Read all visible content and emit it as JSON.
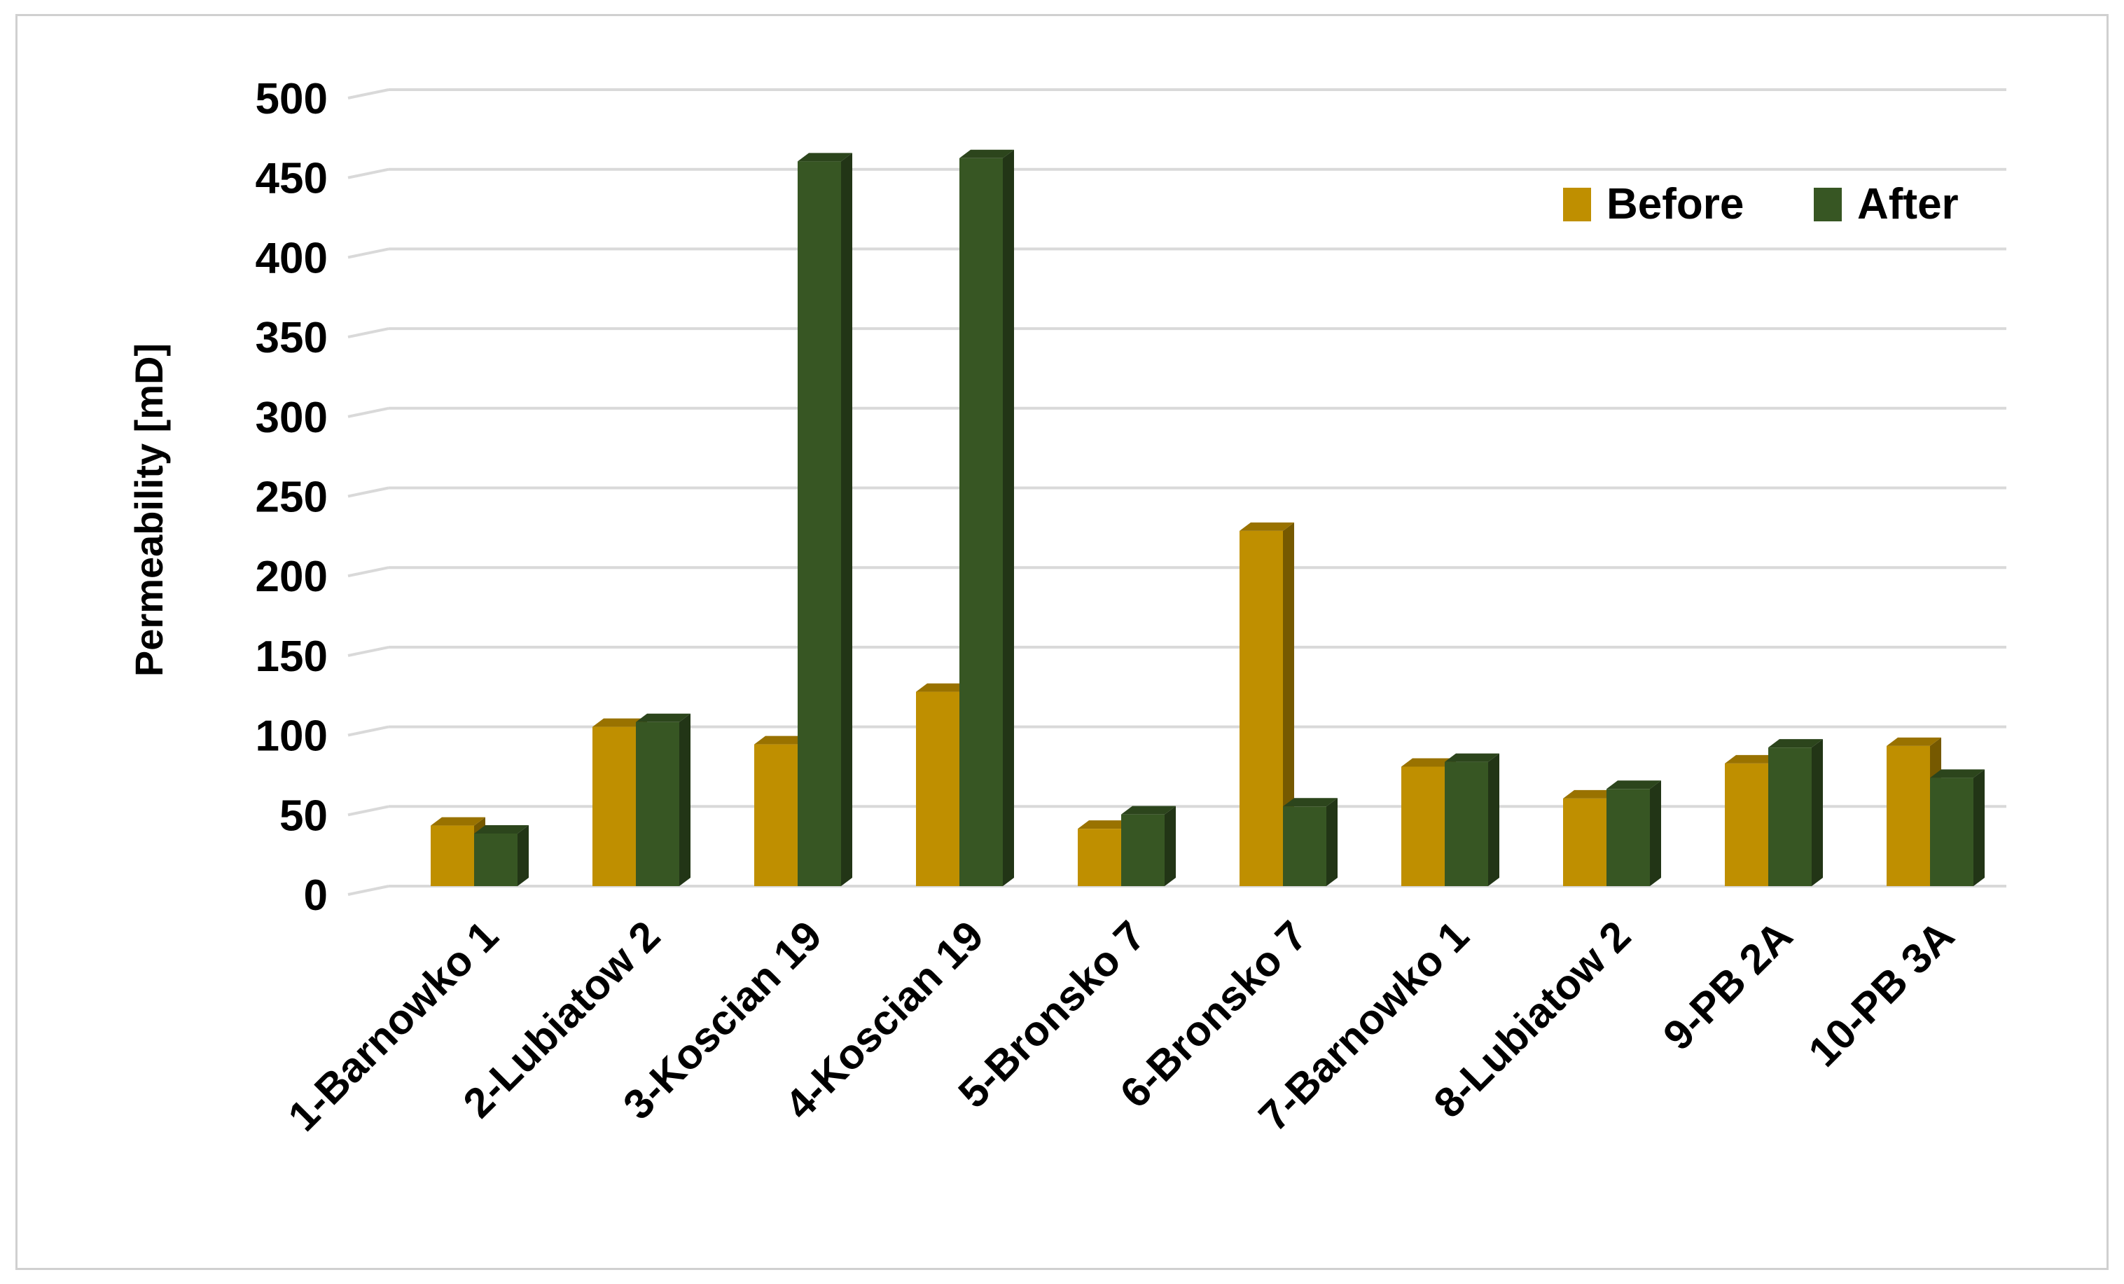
{
  "chart_data": {
    "type": "bar",
    "ylabel": "Permeability [mD]",
    "xlabel": "",
    "ylim": [
      0,
      500
    ],
    "yticks": [
      "0",
      "50",
      "100",
      "150",
      "200",
      "250",
      "300",
      "350",
      "400",
      "450",
      "500"
    ],
    "grid": true,
    "legend_position": "top-right",
    "categories": [
      "1-Barnowko 1",
      "2-Lubiatow 2",
      "3-Koscian 19",
      "4-Koscian 19",
      "5-Bronsko 7",
      "6-Bronsko 7",
      "7-Barnowko 1",
      "8-Lubiatow 2",
      "9-PB 2A",
      "10-PB 3A"
    ],
    "series": [
      {
        "name": "Before",
        "color": "#bf8f00",
        "values": [
          38,
          100,
          89,
          122,
          36,
          223,
          75,
          55,
          77,
          88
        ]
      },
      {
        "name": "After",
        "color": "#375623",
        "values": [
          33,
          103,
          455,
          457,
          45,
          50,
          78,
          61,
          87,
          68
        ]
      }
    ]
  }
}
